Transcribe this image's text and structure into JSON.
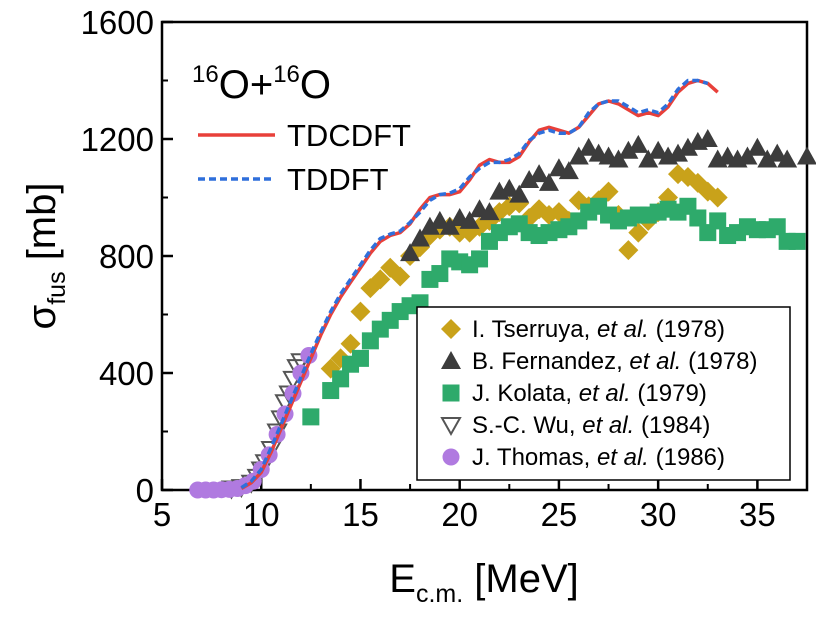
{
  "chart_data": {
    "type": "scatter",
    "annotation": {
      "base1": "O+",
      "sup1": "16",
      "base2": "O",
      "sup2": "16"
    },
    "xlabel": {
      "base": "E",
      "sub": "c.m.",
      "unit": " [MeV]"
    },
    "ylabel": {
      "base": "σ",
      "sub": "fus",
      "unit": " [mb]"
    },
    "xlim": [
      5,
      37.5
    ],
    "ylim": [
      0,
      1600
    ],
    "xticks": [
      5,
      10,
      15,
      20,
      25,
      30,
      35
    ],
    "yticks": [
      0,
      400,
      800,
      1200,
      1600
    ],
    "grid": false,
    "colors": {
      "tdcdft": "#e8403a",
      "tddft": "#2f6fdb",
      "tserruya": "#c9a21a",
      "fernandez": "#3c3c3c",
      "kolata": "#2eaa6b",
      "wu": "#555555",
      "thomas": "#b07ae0"
    },
    "line_legend": [
      {
        "key": "tdcdft",
        "label": "TDCDFT",
        "style": "solid"
      },
      {
        "key": "tddft",
        "label": "TDDFT",
        "style": "dashed"
      }
    ],
    "marker_legend": [
      {
        "key": "tserruya",
        "marker": "diamond",
        "prefix": "I. Tserruya, ",
        "italic": "et al.",
        "suffix": " (1978)"
      },
      {
        "key": "fernandez",
        "marker": "triangle-up",
        "prefix": "B. Fernandez, ",
        "italic": "et al.",
        "suffix": " (1978)"
      },
      {
        "key": "kolata",
        "marker": "square",
        "prefix": "J. Kolata, ",
        "italic": "et al.",
        "suffix": " (1979)"
      },
      {
        "key": "wu",
        "marker": "triangle-down-open",
        "prefix": "S.-C. Wu, ",
        "italic": "et al.",
        "suffix": " (1984)"
      },
      {
        "key": "thomas",
        "marker": "circle",
        "prefix": "J. Thomas, ",
        "italic": "et al.",
        "suffix": " (1986)"
      }
    ],
    "series": [
      {
        "name": "TDCDFT",
        "key": "tdcdft",
        "kind": "line",
        "x": [
          9,
          9.5,
          10,
          10.5,
          11,
          11.5,
          12,
          12.5,
          13,
          13.5,
          14,
          14.5,
          15,
          15.5,
          16,
          16.5,
          17,
          17.5,
          18,
          18.5,
          19,
          19.5,
          20,
          20.5,
          21,
          21.5,
          22,
          22.5,
          23,
          23.5,
          24,
          24.5,
          25,
          25.5,
          26,
          26.5,
          27,
          27.5,
          28,
          28.5,
          29,
          29.5,
          30,
          30.5,
          31,
          31.5,
          32,
          32.5,
          33
        ],
        "y": [
          5,
          25,
          60,
          130,
          210,
          290,
          370,
          450,
          530,
          600,
          660,
          710,
          760,
          810,
          850,
          870,
          880,
          910,
          960,
          1000,
          1010,
          1010,
          1020,
          1060,
          1110,
          1130,
          1120,
          1120,
          1140,
          1190,
          1230,
          1240,
          1230,
          1220,
          1240,
          1280,
          1320,
          1330,
          1320,
          1300,
          1280,
          1290,
          1280,
          1310,
          1360,
          1390,
          1400,
          1390,
          1360
        ]
      },
      {
        "name": "TDDFT",
        "key": "tddft",
        "kind": "line",
        "x": [
          9,
          9.5,
          10,
          10.5,
          11,
          11.5,
          12,
          12.5,
          13,
          13.5,
          14,
          14.5,
          15,
          15.5,
          16,
          16.5,
          17,
          17.5,
          18,
          18.5,
          19,
          19.5,
          20,
          20.5,
          21,
          21.5,
          22,
          22.5,
          23,
          23.5,
          24,
          24.5,
          25,
          25.5,
          26,
          26.5,
          27,
          27.5,
          28,
          28.5,
          29,
          29.5,
          30,
          30.5,
          31,
          31.5,
          32,
          32.5
        ],
        "y": [
          8,
          30,
          70,
          145,
          225,
          305,
          385,
          465,
          540,
          610,
          670,
          720,
          770,
          820,
          860,
          875,
          885,
          915,
          950,
          990,
          1010,
          1015,
          1030,
          1070,
          1100,
          1120,
          1120,
          1130,
          1150,
          1195,
          1220,
          1230,
          1220,
          1220,
          1240,
          1290,
          1320,
          1330,
          1330,
          1310,
          1290,
          1300,
          1290,
          1320,
          1370,
          1400,
          1400,
          1390
        ]
      },
      {
        "name": "I. Tserruya, et al. (1978)",
        "key": "tserruya",
        "kind": "marker",
        "marker": "diamond",
        "x": [
          13.5,
          14,
          14.5,
          15,
          15.5,
          16,
          16.5,
          17,
          17.5,
          18,
          18.5,
          19,
          19.5,
          20,
          20.5,
          21,
          21.5,
          22,
          22.5,
          23,
          23.5,
          24,
          24.5,
          25,
          25.5,
          26,
          26.5,
          27,
          27.5,
          28,
          28.5,
          29,
          29.5,
          30,
          30.5,
          31,
          31.5,
          32,
          32.5,
          33
        ],
        "y": [
          415,
          450,
          500,
          610,
          690,
          720,
          760,
          730,
          800,
          830,
          870,
          890,
          900,
          880,
          880,
          900,
          920,
          950,
          970,
          980,
          930,
          960,
          940,
          950,
          920,
          990,
          970,
          990,
          1020,
          940,
          820,
          880,
          920,
          950,
          1000,
          1080,
          1070,
          1050,
          1020,
          1000
        ]
      },
      {
        "name": "B. Fernandez, et al. (1978)",
        "key": "fernandez",
        "kind": "marker",
        "marker": "triangle-up",
        "x": [
          17.5,
          18,
          18.5,
          19,
          19.5,
          20,
          20.5,
          21,
          21.5,
          22,
          22.5,
          23,
          23.5,
          24,
          24.5,
          25,
          25.5,
          26,
          26.5,
          27,
          27.5,
          28,
          28.5,
          29,
          29.5,
          30,
          30.5,
          31,
          31.5,
          32,
          32.5,
          33,
          33.5,
          34,
          34.5,
          35,
          35.5,
          36,
          36.5,
          37.5
        ],
        "y": [
          810,
          860,
          900,
          920,
          900,
          930,
          920,
          960,
          950,
          1020,
          1030,
          1010,
          1060,
          1080,
          1050,
          1100,
          1090,
          1140,
          1170,
          1150,
          1140,
          1130,
          1160,
          1180,
          1130,
          1160,
          1140,
          1150,
          1170,
          1190,
          1200,
          1130,
          1140,
          1130,
          1140,
          1170,
          1130,
          1150,
          1130,
          1140
        ]
      },
      {
        "name": "J. Kolata, et al. (1979)",
        "key": "kolata",
        "kind": "marker",
        "marker": "square",
        "x": [
          12.5,
          13.5,
          14,
          14.5,
          15,
          15.5,
          16,
          16.5,
          17,
          17.5,
          18,
          18.5,
          19,
          19.5,
          20,
          20.5,
          21,
          21.5,
          22,
          22.5,
          23,
          23.5,
          24,
          24.5,
          25,
          25.5,
          26,
          26.5,
          27,
          27.5,
          28,
          28.5,
          29,
          29.5,
          30,
          30.5,
          31,
          31.5,
          32,
          32.5,
          33,
          33.5,
          34,
          34.5,
          35,
          35.5,
          36,
          36.5,
          37
        ],
        "y": [
          250,
          340,
          380,
          430,
          450,
          510,
          550,
          580,
          610,
          630,
          640,
          720,
          740,
          790,
          780,
          770,
          790,
          850,
          880,
          900,
          910,
          880,
          870,
          880,
          890,
          900,
          920,
          950,
          970,
          940,
          920,
          930,
          940,
          940,
          950,
          960,
          950,
          970,
          930,
          880,
          920,
          870,
          880,
          900,
          890,
          890,
          900,
          850,
          850
        ]
      },
      {
        "name": "S.-C. Wu, et al. (1984)",
        "key": "wu",
        "kind": "marker",
        "marker": "triangle-down-open",
        "x": [
          8.5,
          9,
          9.5,
          9.8,
          10,
          10.2,
          10.5,
          10.8,
          11,
          11.2,
          11.4,
          11.6,
          11.8,
          12
        ],
        "y": [
          5,
          10,
          25,
          45,
          70,
          95,
          140,
          200,
          245,
          300,
          330,
          380,
          420,
          440
        ]
      },
      {
        "name": "J. Thomas, et al. (1986)",
        "key": "thomas",
        "kind": "marker",
        "marker": "circle",
        "x": [
          6.8,
          7.2,
          7.6,
          8,
          8.4,
          8.8,
          9.2,
          9.6,
          10,
          10.4,
          10.8,
          11.2,
          11.6,
          12,
          12.4
        ],
        "y": [
          0,
          0,
          0,
          1,
          2,
          5,
          15,
          30,
          70,
          120,
          190,
          260,
          330,
          400,
          460
        ]
      }
    ]
  }
}
